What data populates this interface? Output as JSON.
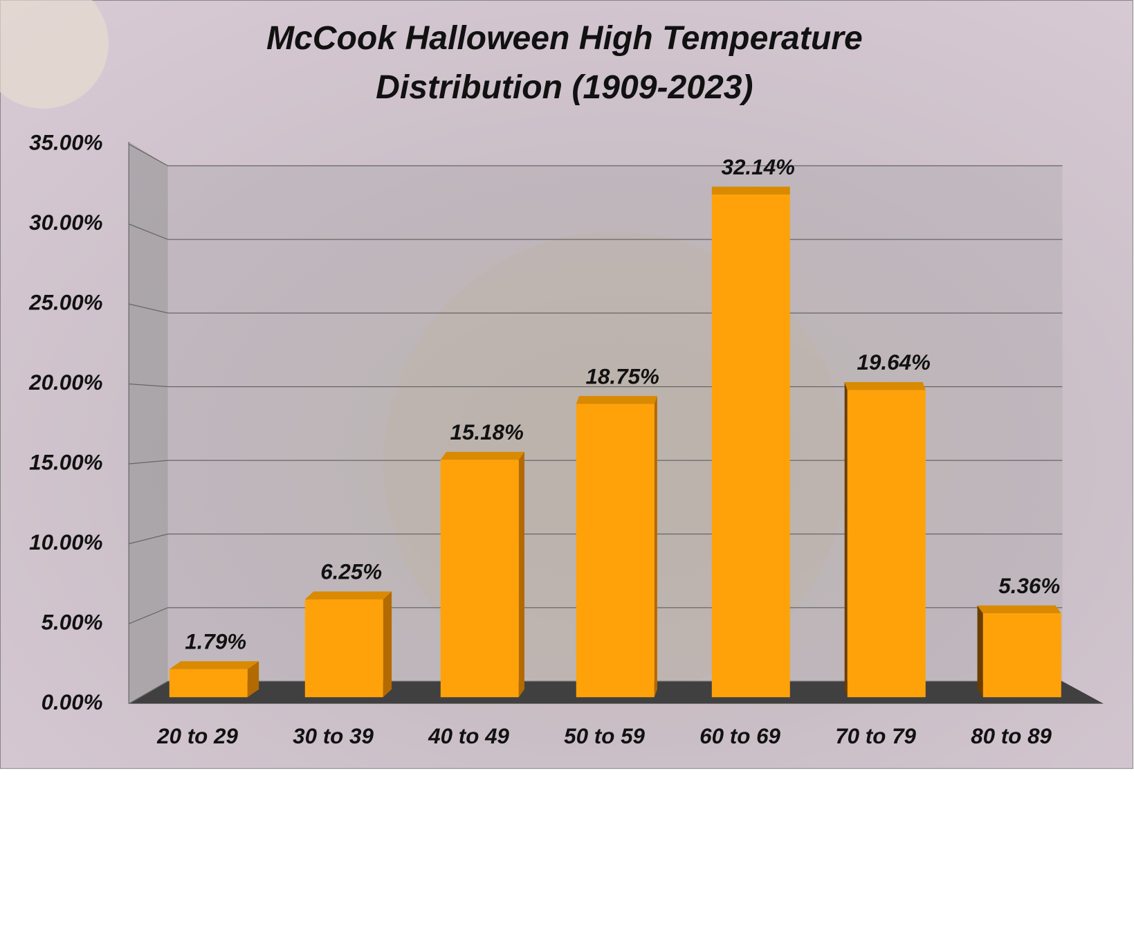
{
  "chart_data": {
    "type": "bar3d",
    "title": "McCook Halloween High Temperature Distribution (1909-2023)",
    "categories": [
      "20 to 29",
      "30 to 39",
      "40 to 49",
      "50 to 59",
      "60 to 69",
      "70 to 79",
      "80 to 89"
    ],
    "values": [
      1.79,
      6.25,
      15.18,
      18.75,
      32.14,
      19.64,
      5.36
    ],
    "value_labels": [
      "1.79%",
      "6.25%",
      "15.18%",
      "18.75%",
      "32.14%",
      "19.64%",
      "5.36%"
    ],
    "color": "#ffa20a",
    "ylim": [
      0,
      35
    ],
    "yticks": [
      {
        "value": 0,
        "label": "0.00%"
      },
      {
        "value": 5,
        "label": "5.00%"
      },
      {
        "value": 10,
        "label": "10.00%"
      },
      {
        "value": 15,
        "label": "15.00%"
      },
      {
        "value": 20,
        "label": "20.00%"
      },
      {
        "value": 25,
        "label": "25.00%"
      },
      {
        "value": 30,
        "label": "30.00%"
      },
      {
        "value": 35,
        "label": "35.00%"
      }
    ],
    "grid": true
  }
}
